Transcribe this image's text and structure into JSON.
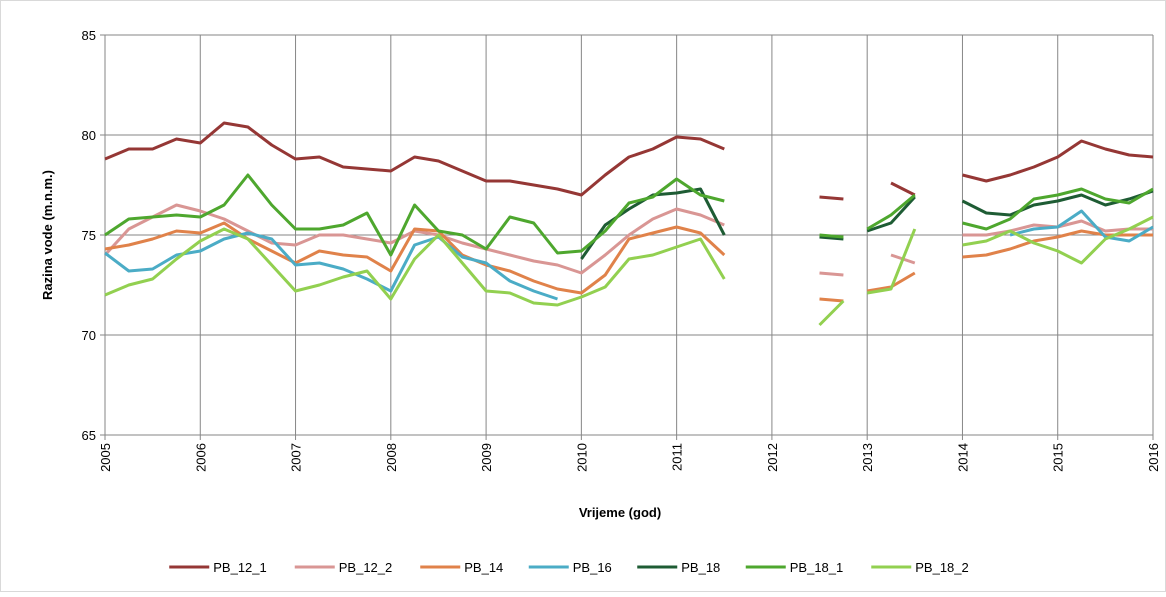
{
  "chart_data": {
    "type": "line",
    "y_label": "Razina vode (m.n.m.)",
    "x_label": "Vrijeme (god)",
    "xlim": [
      2005,
      2016
    ],
    "xticks": [
      2005,
      2006,
      2007,
      2008,
      2009,
      2010,
      2011,
      2012,
      2013,
      2014,
      2015,
      2016
    ],
    "ylim": [
      65,
      85
    ],
    "yticks": [
      65,
      70,
      75,
      80,
      85
    ],
    "grid": true,
    "legend": "bottom",
    "x": [
      2005,
      2005.25,
      2005.5,
      2005.75,
      2006,
      2006.25,
      2006.5,
      2006.75,
      2007,
      2007.25,
      2007.5,
      2007.75,
      2008,
      2008.25,
      2008.5,
      2008.75,
      2009,
      2009.25,
      2009.5,
      2009.75,
      2010,
      2010.25,
      2010.5,
      2010.75,
      2011,
      2011.25,
      2011.5,
      2011.75,
      2012.5,
      2012.75,
      2012.875,
      2013,
      2013.25,
      2013.5,
      2013.75,
      2014,
      2014.25,
      2014.5,
      2014.75,
      2015,
      2015.25,
      2015.5,
      2015.75,
      2016
    ],
    "series": [
      {
        "name": "PB_12_1",
        "color": "#953735",
        "values": [
          78.8,
          79.3,
          79.3,
          79.8,
          79.6,
          80.6,
          80.4,
          79.5,
          78.8,
          78.9,
          78.4,
          78.3,
          78.2,
          78.9,
          78.7,
          78.2,
          77.7,
          77.7,
          77.5,
          77.3,
          77.0,
          78.0,
          78.9,
          79.3,
          79.9,
          79.8,
          79.3,
          null,
          76.9,
          76.8,
          null,
          null,
          77.6,
          77.0,
          null,
          78.0,
          77.7,
          78.0,
          78.4,
          78.9,
          79.7,
          79.3,
          79.0,
          78.9
        ]
      },
      {
        "name": "PB_12_2",
        "color": "#D99694",
        "values": [
          74.0,
          75.3,
          75.9,
          76.5,
          76.2,
          75.8,
          75.2,
          74.6,
          74.5,
          75.0,
          75.0,
          74.8,
          74.6,
          75.2,
          75.0,
          74.6,
          74.3,
          74.0,
          73.7,
          73.5,
          73.1,
          74.0,
          75.0,
          75.8,
          76.3,
          76.0,
          75.5,
          null,
          73.1,
          73.0,
          null,
          null,
          74.0,
          73.6,
          null,
          75.0,
          75.0,
          75.2,
          75.5,
          75.4,
          75.7,
          75.2,
          75.3,
          75.3
        ]
      },
      {
        "name": "PB_14",
        "color": "#E0824A",
        "values": [
          74.3,
          74.5,
          74.8,
          75.2,
          75.1,
          75.6,
          74.8,
          74.2,
          73.6,
          74.2,
          74.0,
          73.9,
          73.2,
          75.3,
          75.2,
          74.0,
          73.5,
          73.2,
          72.7,
          72.3,
          72.1,
          73.0,
          74.8,
          75.1,
          75.4,
          75.1,
          74.0,
          null,
          71.8,
          71.7,
          null,
          72.2,
          72.4,
          73.1,
          null,
          73.9,
          74.0,
          74.3,
          74.7,
          74.9,
          75.2,
          75.0,
          75.0,
          75.0
        ]
      },
      {
        "name": "PB_16",
        "color": "#4BACC6",
        "values": [
          74.1,
          73.2,
          73.3,
          74.0,
          74.2,
          74.8,
          75.1,
          74.8,
          73.5,
          73.6,
          73.3,
          72.8,
          72.2,
          74.5,
          74.9,
          73.9,
          73.6,
          72.7,
          72.2,
          71.8,
          null,
          null,
          null,
          null,
          null,
          null,
          null,
          null,
          null,
          null,
          null,
          null,
          null,
          null,
          null,
          null,
          null,
          75.0,
          75.3,
          75.4,
          76.2,
          74.9,
          74.7,
          75.4
        ]
      },
      {
        "name": "PB_18",
        "color": "#1E5C34",
        "values": [
          null,
          null,
          null,
          null,
          null,
          null,
          null,
          null,
          null,
          null,
          null,
          null,
          null,
          null,
          null,
          null,
          null,
          null,
          null,
          null,
          73.8,
          75.5,
          76.3,
          77.0,
          77.1,
          77.3,
          75.0,
          null,
          74.9,
          74.8,
          null,
          75.2,
          75.6,
          76.9,
          null,
          76.7,
          76.1,
          76.0,
          76.5,
          76.7,
          77.0,
          76.5,
          76.8,
          77.2
        ]
      },
      {
        "name": "PB_18_1",
        "color": "#4EA72E",
        "values": [
          75.0,
          75.8,
          75.9,
          76.0,
          75.9,
          76.5,
          78.0,
          76.5,
          75.3,
          75.3,
          75.5,
          76.1,
          74.0,
          76.5,
          75.2,
          75.0,
          74.3,
          75.9,
          75.6,
          74.1,
          74.2,
          75.2,
          76.6,
          76.9,
          77.8,
          77.0,
          76.7,
          null,
          75.0,
          74.9,
          null,
          75.3,
          76.0,
          77.0,
          null,
          75.6,
          75.3,
          75.8,
          76.8,
          77.0,
          77.3,
          76.8,
          76.6,
          77.3
        ]
      },
      {
        "name": "PB_18_2",
        "color": "#92D050",
        "values": [
          72.0,
          72.5,
          72.8,
          73.8,
          74.7,
          75.3,
          74.8,
          73.5,
          72.2,
          72.5,
          72.9,
          73.2,
          71.8,
          73.8,
          75.0,
          73.6,
          72.2,
          72.1,
          71.6,
          71.5,
          71.9,
          72.4,
          73.8,
          74.0,
          74.4,
          74.8,
          72.8,
          null,
          70.5,
          71.7,
          null,
          72.1,
          72.3,
          75.3,
          null,
          74.5,
          74.7,
          75.2,
          74.6,
          74.2,
          73.6,
          74.8,
          75.3,
          75.9
        ]
      }
    ]
  }
}
